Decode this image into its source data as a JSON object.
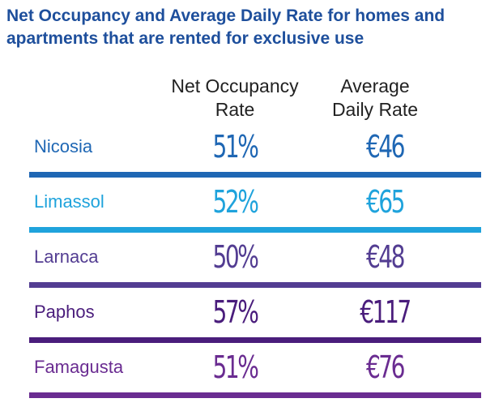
{
  "title": "Net Occupancy and Average Daily Rate for homes and apartments that are rented for exclusive use",
  "columns": {
    "occupancy": [
      "Net Occupancy",
      "Rate"
    ],
    "adr": [
      "Average",
      "Daily Rate"
    ]
  },
  "colors": {
    "title": "#1e4f9c",
    "nicosia": "#1f67b4",
    "limassol": "#1fa3dc",
    "larnaca": "#533d92",
    "paphos": "#4a1d7c",
    "famagusta": "#6a2c91"
  },
  "chart_data": {
    "type": "table",
    "title": "Net Occupancy and Average Daily Rate for homes and apartments that are rented for exclusive use",
    "columns": [
      "",
      "Net Occupancy Rate",
      "Average Daily Rate"
    ],
    "rows": [
      {
        "city": "Nicosia",
        "occupancy": "51%",
        "adr": "€46"
      },
      {
        "city": "Limassol",
        "occupancy": "52%",
        "adr": "€65"
      },
      {
        "city": "Larnaca",
        "occupancy": "50%",
        "adr": "€48"
      },
      {
        "city": "Paphos",
        "occupancy": "57%",
        "adr": "€117"
      },
      {
        "city": "Famagusta",
        "occupancy": "51%",
        "adr": "€76"
      }
    ]
  }
}
